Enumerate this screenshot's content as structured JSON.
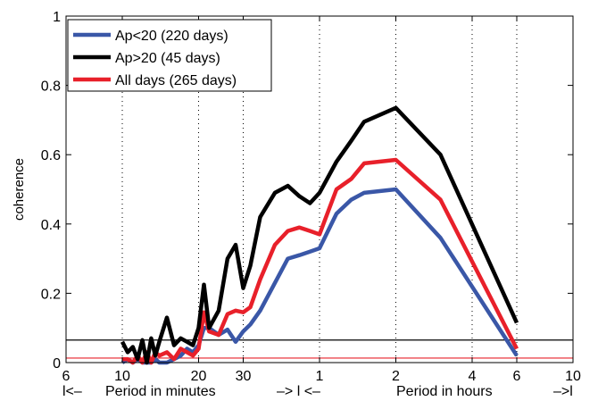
{
  "chart_data": {
    "type": "line",
    "xscale": "log",
    "xlim_minutes": [
      6,
      600
    ],
    "ylim": [
      0,
      1
    ],
    "ylabel": "coherence",
    "grid": "dotted vertical",
    "legend_position": "top-left",
    "x_tick_labels": [
      {
        "minutes": 6,
        "label": "6"
      },
      {
        "minutes": 10,
        "label": "10"
      },
      {
        "minutes": 20,
        "label": "20"
      },
      {
        "minutes": 30,
        "label": "30"
      },
      {
        "minutes": 60,
        "label": "1"
      },
      {
        "minutes": 120,
        "label": "2"
      },
      {
        "minutes": 240,
        "label": "4"
      },
      {
        "minutes": 360,
        "label": "6"
      },
      {
        "minutes": 600,
        "label": "10"
      }
    ],
    "y_ticks": [
      0,
      0.2,
      0.4,
      0.6,
      0.8,
      1
    ],
    "y_tick_labels": [
      "0",
      "0.2",
      "0.4",
      "0.6",
      "0.8",
      "1"
    ],
    "bottom_annotations": {
      "left_bracket": "l<–",
      "minutes_label": "Period in minutes",
      "middle_bracket": "–> l <–",
      "hours_label": "Period in hours",
      "right_bracket": "–>l"
    },
    "reference_lines": [
      {
        "y": 0.065,
        "color": "#000000"
      },
      {
        "y": 0.013,
        "color": "#e8202a"
      }
    ],
    "series": [
      {
        "name": "Ap<20 (220 days)",
        "color": "#3a57a7",
        "x_minutes": [
          10,
          10.5,
          11,
          11.5,
          12,
          12.5,
          13,
          13.5,
          14,
          15,
          16,
          17,
          18,
          19,
          20,
          21,
          22,
          24,
          26,
          28,
          30,
          32,
          35,
          40,
          45,
          50,
          55,
          60,
          70,
          80,
          90,
          120,
          180,
          360
        ],
        "values": [
          0.0,
          0.01,
          0.0,
          0.01,
          0.0,
          0.0,
          0.0,
          0.01,
          0.0,
          0.0,
          0.01,
          0.02,
          0.04,
          0.03,
          0.05,
          0.1,
          0.1,
          0.08,
          0.095,
          0.06,
          0.09,
          0.11,
          0.15,
          0.23,
          0.3,
          0.31,
          0.32,
          0.33,
          0.43,
          0.47,
          0.49,
          0.5,
          0.36,
          0.02
        ]
      },
      {
        "name": "Ap>20 (45 days)",
        "color": "#000000",
        "x_minutes": [
          10,
          10.5,
          11,
          11.5,
          12,
          12.5,
          13,
          13.5,
          14,
          15,
          16,
          17,
          18,
          19,
          20,
          21,
          22,
          24,
          26,
          28,
          30,
          32,
          35,
          40,
          45,
          50,
          55,
          60,
          70,
          80,
          90,
          120,
          180,
          360
        ],
        "values": [
          0.06,
          0.03,
          0.045,
          0.01,
          0.065,
          0.0,
          0.07,
          0.02,
          0.06,
          0.13,
          0.05,
          0.07,
          0.06,
          0.05,
          0.1,
          0.225,
          0.1,
          0.15,
          0.3,
          0.34,
          0.215,
          0.28,
          0.42,
          0.49,
          0.51,
          0.48,
          0.46,
          0.49,
          0.58,
          0.64,
          0.695,
          0.735,
          0.6,
          0.115
        ]
      },
      {
        "name": "All days (265 days)",
        "color": "#e8202a",
        "x_minutes": [
          10,
          10.5,
          11,
          11.5,
          12,
          12.5,
          13,
          13.5,
          14,
          15,
          16,
          17,
          18,
          19,
          20,
          21,
          22,
          24,
          26,
          28,
          30,
          32,
          35,
          40,
          45,
          50,
          55,
          60,
          70,
          80,
          90,
          120,
          180,
          360
        ],
        "values": [
          0.01,
          0.01,
          0.0,
          0.02,
          0.0,
          0.03,
          0.0,
          0.03,
          0.02,
          0.03,
          0.01,
          0.04,
          0.03,
          0.02,
          0.04,
          0.145,
          0.09,
          0.08,
          0.14,
          0.15,
          0.145,
          0.16,
          0.24,
          0.34,
          0.38,
          0.39,
          0.38,
          0.37,
          0.5,
          0.53,
          0.575,
          0.585,
          0.47,
          0.04
        ]
      }
    ]
  }
}
